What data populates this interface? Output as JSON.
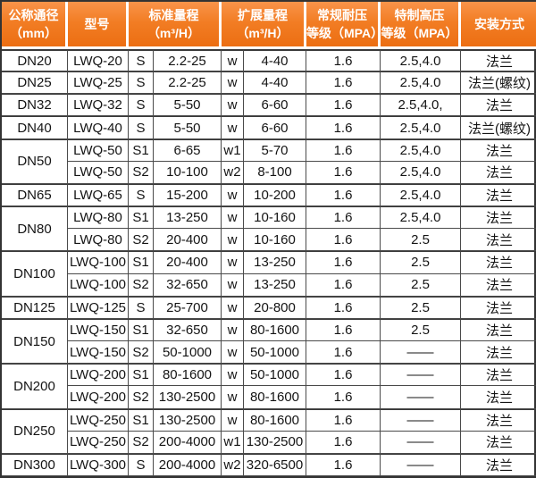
{
  "table": {
    "header": {
      "cols": [
        {
          "label": "公称通径\n（mm）"
        },
        {
          "label": "型号"
        },
        {
          "label": "标准量程\n（m³/H）"
        },
        {
          "label": "扩展量程\n（m³/H）"
        },
        {
          "label": "常规耐压\n等级（MPA）"
        },
        {
          "label": "特制高压\n等级（MPA）"
        },
        {
          "label": "安装方式"
        }
      ]
    },
    "groups": [
      {
        "dn": "DN20",
        "rows": [
          {
            "model": "LWQ-20",
            "s_code": "S",
            "s_range": "2.2-25",
            "w_code": "w",
            "w_range": "4-40",
            "regular_mpa": "1.6",
            "special_mpa": "2.5,4.0",
            "install": "法兰"
          }
        ]
      },
      {
        "dn": "DN25",
        "rows": [
          {
            "model": "LWQ-25",
            "s_code": "S",
            "s_range": "2.2-25",
            "w_code": "w",
            "w_range": "4-40",
            "regular_mpa": "1.6",
            "special_mpa": "2.5,4.0",
            "install": "法兰(螺纹)"
          }
        ]
      },
      {
        "dn": "DN32",
        "rows": [
          {
            "model": "LWQ-32",
            "s_code": "S",
            "s_range": "5-50",
            "w_code": "w",
            "w_range": "6-60",
            "regular_mpa": "1.6",
            "special_mpa": "2.5,4.0,",
            "install": "法兰"
          }
        ]
      },
      {
        "dn": "DN40",
        "rows": [
          {
            "model": "LWQ-40",
            "s_code": "S",
            "s_range": "5-50",
            "w_code": "w",
            "w_range": "6-60",
            "regular_mpa": "1.6",
            "special_mpa": "2.5,4.0",
            "install": "法兰(螺纹)"
          }
        ]
      },
      {
        "dn": "DN50",
        "rows": [
          {
            "model": "LWQ-50",
            "s_code": "S1",
            "s_range": "6-65",
            "w_code": "w1",
            "w_range": "5-70",
            "regular_mpa": "1.6",
            "special_mpa": "2.5,4.0",
            "install": "法兰"
          },
          {
            "model": "LWQ-50",
            "s_code": "S2",
            "s_range": "10-100",
            "w_code": "w2",
            "w_range": "8-100",
            "regular_mpa": "1.6",
            "special_mpa": "2.5,4.0",
            "install": "法兰"
          }
        ]
      },
      {
        "dn": "DN65",
        "rows": [
          {
            "model": "LWQ-65",
            "s_code": "S",
            "s_range": "15-200",
            "w_code": "w",
            "w_range": "10-200",
            "regular_mpa": "1.6",
            "special_mpa": "2.5,4.0",
            "install": "法兰"
          }
        ]
      },
      {
        "dn": "DN80",
        "rows": [
          {
            "model": "LWQ-80",
            "s_code": "S1",
            "s_range": "13-250",
            "w_code": "w",
            "w_range": "10-160",
            "regular_mpa": "1.6",
            "special_mpa": "2.5,4.0",
            "install": "法兰"
          },
          {
            "model": "LWQ-80",
            "s_code": "S2",
            "s_range": "20-400",
            "w_code": "w",
            "w_range": "10-160",
            "regular_mpa": "1.6",
            "special_mpa": "2.5",
            "install": "法兰"
          }
        ]
      },
      {
        "dn": "DN100",
        "rows": [
          {
            "model": "LWQ-100",
            "s_code": "S1",
            "s_range": "20-400",
            "w_code": "w",
            "w_range": "13-250",
            "regular_mpa": "1.6",
            "special_mpa": "2.5",
            "install": "法兰"
          },
          {
            "model": "LWQ-100",
            "s_code": "S2",
            "s_range": "32-650",
            "w_code": "w",
            "w_range": "13-250",
            "regular_mpa": "1.6",
            "special_mpa": "2.5",
            "install": "法兰"
          }
        ]
      },
      {
        "dn": "DN125",
        "rows": [
          {
            "model": "LWQ-125",
            "s_code": "S",
            "s_range": "25-700",
            "w_code": "w",
            "w_range": "20-800",
            "regular_mpa": "1.6",
            "special_mpa": "2.5",
            "install": "法兰"
          }
        ]
      },
      {
        "dn": "DN150",
        "rows": [
          {
            "model": "LWQ-150",
            "s_code": "S1",
            "s_range": "32-650",
            "w_code": "w",
            "w_range": "80-1600",
            "regular_mpa": "1.6",
            "special_mpa": "2.5",
            "install": "法兰"
          },
          {
            "model": "LWQ-150",
            "s_code": "S2",
            "s_range": "50-1000",
            "w_code": "w",
            "w_range": "50-1000",
            "regular_mpa": "1.6",
            "special_mpa": "——",
            "install": "法兰"
          }
        ]
      },
      {
        "dn": "DN200",
        "rows": [
          {
            "model": "LWQ-200",
            "s_code": "S1",
            "s_range": "80-1600",
            "w_code": "w",
            "w_range": "50-1000",
            "regular_mpa": "1.6",
            "special_mpa": "——",
            "install": "法兰"
          },
          {
            "model": "LWQ-200",
            "s_code": "S2",
            "s_range": "130-2500",
            "w_code": "w",
            "w_range": "80-1600",
            "regular_mpa": "1.6",
            "special_mpa": "——",
            "install": "法兰"
          }
        ]
      },
      {
        "dn": "DN250",
        "rows": [
          {
            "model": "LWQ-250",
            "s_code": "S1",
            "s_range": "130-2500",
            "w_code": "w",
            "w_range": "80-1600",
            "regular_mpa": "1.6",
            "special_mpa": "——",
            "install": "法兰"
          },
          {
            "model": "LWQ-250",
            "s_code": "S2",
            "s_range": "200-4000",
            "w_code": "w1",
            "w_range": "130-2500",
            "regular_mpa": "1.6",
            "special_mpa": "——",
            "install": "法兰"
          }
        ]
      },
      {
        "dn": "DN300",
        "rows": [
          {
            "model": "LWQ-300",
            "s_code": "S",
            "s_range": "200-4000",
            "w_code": "w2",
            "w_range": "320-6500",
            "regular_mpa": "1.6",
            "special_mpa": "——",
            "install": "法兰"
          }
        ]
      }
    ]
  },
  "colors": {
    "header_orange": "#f27d24",
    "header_orange_light": "#f9944a",
    "header_orange_dark": "#ec6e12",
    "header_text": "#ffffff",
    "grid_line": "#4a4a4a",
    "outer_border": "#333333",
    "cell_text": "#141414",
    "cell_bg": "#ffffff"
  }
}
